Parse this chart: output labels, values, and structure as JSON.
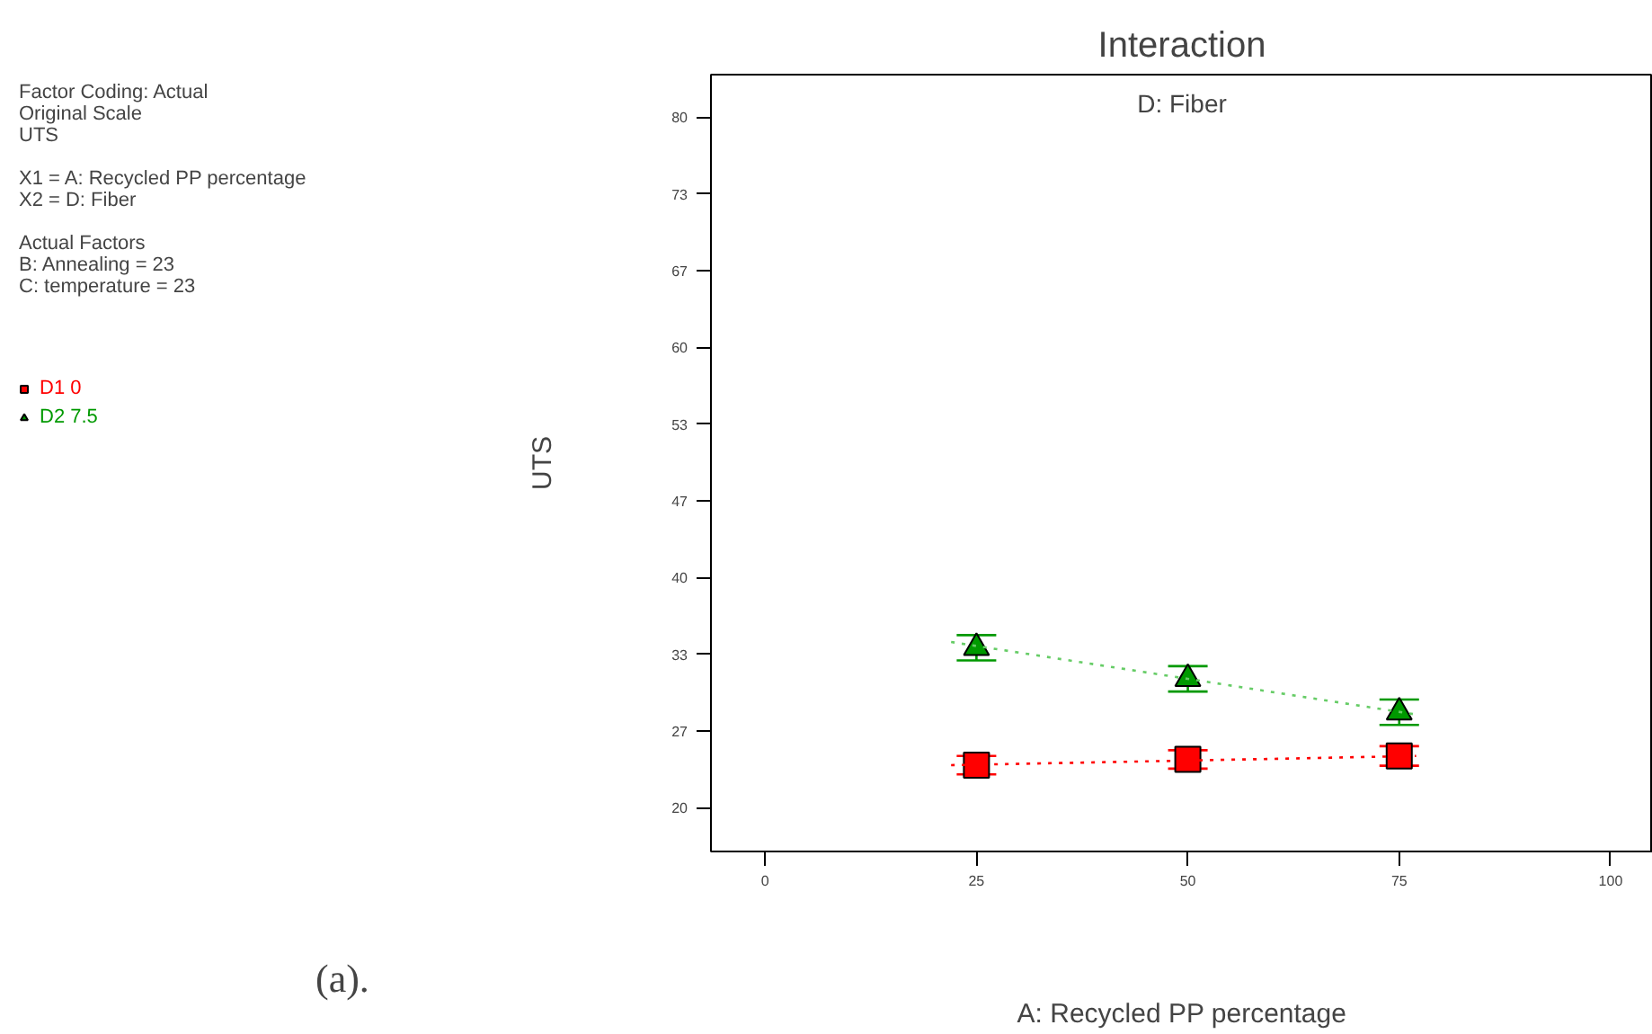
{
  "chart_data": {
    "type": "scatter",
    "title": "Interaction",
    "subtitle": "D: Fiber",
    "xlabel": "A: Recycled PP percentage",
    "ylabel": "UTS",
    "x": [
      25,
      50,
      75
    ],
    "series": [
      {
        "name": "D1 0",
        "marker": "square",
        "color": "#ff0000",
        "values": [
          23.7,
          24.2,
          24.5
        ],
        "errors": [
          0.8,
          0.8,
          0.85
        ]
      },
      {
        "name": "D2 7.5",
        "marker": "triangle",
        "color": "#009900",
        "values": [
          33.9,
          31.2,
          28.3
        ],
        "errors": [
          1.1,
          1.1,
          1.1
        ]
      },
      {
        "type": "line",
        "line_style": "dotted",
        "color": "#ff0000",
        "x": [
          22,
          50,
          77
        ],
        "values": [
          23.7,
          24.1,
          24.5
        ]
      },
      {
        "type": "line",
        "line_style": "dotted",
        "color": "#66cc66",
        "x": [
          22,
          50,
          77
        ],
        "values": [
          34.4,
          31.2,
          28.1
        ]
      }
    ],
    "xlim": [
      -6.4,
      105
    ],
    "xticks": [
      0,
      25,
      50,
      75,
      100
    ],
    "ylim": [
      16.2,
      83.7
    ],
    "yticks": [
      20,
      {
        "value": 26.67,
        "label": "27"
      },
      {
        "value": 33.33,
        "label": "33"
      },
      40,
      {
        "value": 46.67,
        "label": "47"
      },
      {
        "value": 53.33,
        "label": "53"
      },
      60,
      {
        "value": 66.67,
        "label": "67"
      },
      {
        "value": 73.33,
        "label": "73"
      },
      80
    ],
    "grid": false,
    "legend": "left",
    "annotations": [
      "Factor Coding: Actual\nOriginal Scale\nUTS",
      "X1 = A: Recycled PP percentage\nX2 = D: Fiber",
      "Actual Factors\nB: Annealing = 23\nC: temperature = 23",
      "(a)."
    ]
  }
}
